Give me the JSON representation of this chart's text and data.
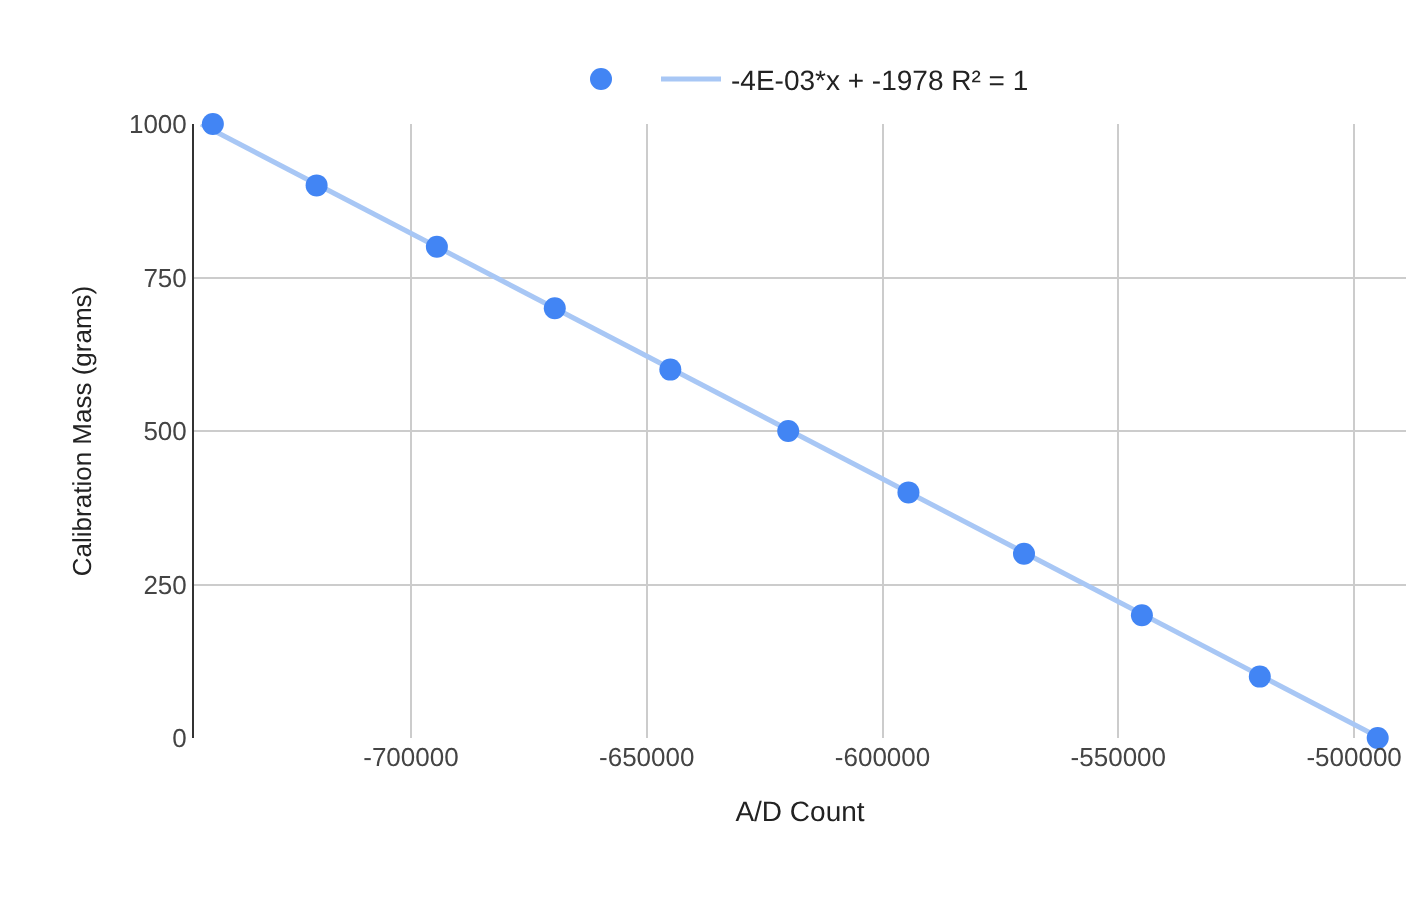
{
  "chart_data": {
    "type": "scatter",
    "xlabel": "A/D Count",
    "ylabel": "Calibration Mass (grams)",
    "x": [
      -742000,
      -720000,
      -694500,
      -669500,
      -645000,
      -620000,
      -594500,
      -570000,
      -545000,
      -520000,
      -495000
    ],
    "series": [
      {
        "color": "#4285f4",
        "values": [
          1000,
          900,
          800,
          700,
          600,
          500,
          400,
          300,
          200,
          100,
          0
        ],
        "marker": "circle"
      },
      {
        "type": "line",
        "name": "-4E-03*x + -1978 R² = 1",
        "color": "#a8c7f5",
        "x": [
          -744500,
          -494500
        ],
        "values": [
          1000,
          0
        ]
      }
    ],
    "xlim": [
      -746000,
      -489000
    ],
    "xticks": [
      -700000,
      -650000,
      -600000,
      -550000,
      -500000
    ],
    "ylim": [
      0,
      1000
    ],
    "yticks": [
      0,
      250,
      500,
      750,
      1000
    ],
    "grid": true,
    "legend": "top"
  }
}
